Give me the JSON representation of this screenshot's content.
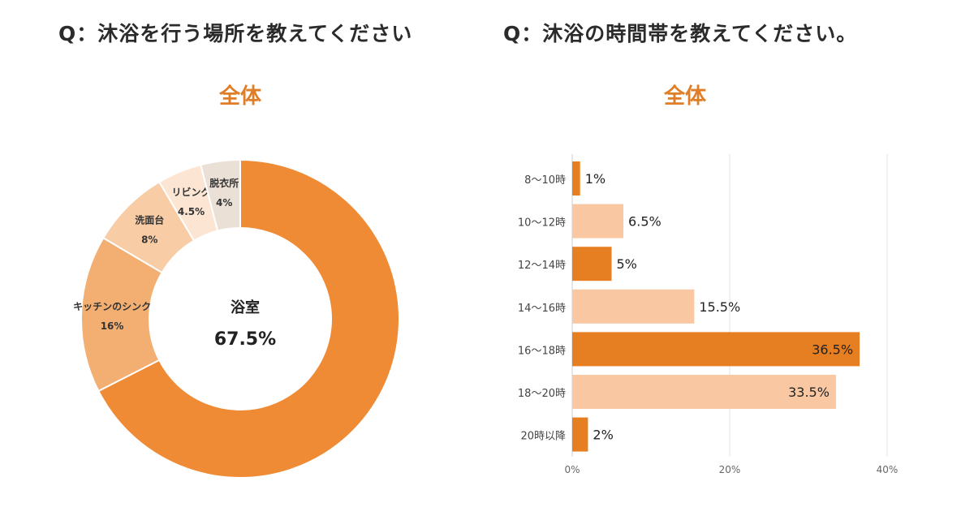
{
  "left_chart": {
    "question": "Q：沐浴を行う場所を教えてください",
    "subtitle": "全体"
  },
  "right_chart": {
    "question": "Q：沐浴の時間帯を教えてください。",
    "subtitle": "全体"
  },
  "chart_data": [
    {
      "type": "pie",
      "title": "全体",
      "slices": [
        {
          "label": "浴室",
          "value": 67.5,
          "value_label": "67.5%",
          "color": "#ef8a35"
        },
        {
          "label": "キッチンのシンク",
          "value": 16,
          "value_label": "16%",
          "color": "#f3ae72"
        },
        {
          "label": "洗面台",
          "value": 8,
          "value_label": "8%",
          "color": "#f8cca5"
        },
        {
          "label": "リビング",
          "value": 4.5,
          "value_label": "4.5%",
          "color": "#fce6d3"
        },
        {
          "label": "脱衣所",
          "value": 4,
          "value_label": "4%",
          "color": "#ebe0d6"
        }
      ]
    },
    {
      "type": "bar",
      "orientation": "horizontal",
      "title": "全体",
      "categories": [
        "8～10時",
        "10～12時",
        "12～14時",
        "14～16時",
        "16～18時",
        "18～20時",
        "20時以降"
      ],
      "values": [
        1,
        6.5,
        5,
        15.5,
        36.5,
        33.5,
        2
      ],
      "value_labels": [
        "1%",
        "6.5%",
        "5%",
        "15.5%",
        "36.5%",
        "33.5%",
        "2%"
      ],
      "colors": [
        "#e67e22",
        "#f9c8a2",
        "#e67e22",
        "#f9c8a2",
        "#e67e22",
        "#f9c8a2",
        "#e67e22"
      ],
      "xlim": [
        0,
        40
      ],
      "xticks": [
        "0%",
        "20%",
        "40%"
      ],
      "grid": true
    }
  ]
}
